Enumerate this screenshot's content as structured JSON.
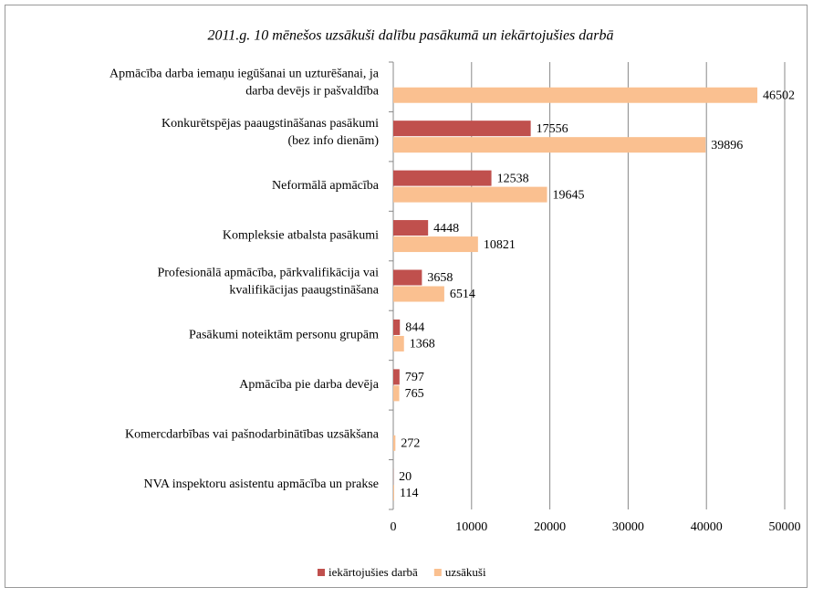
{
  "chart_data": {
    "type": "bar",
    "orientation": "horizontal",
    "title": "2011.g. 10 mēnešos uzsākuši  dalību pasākumā un iekārtojušies  darbā",
    "categories": [
      "Apmācība darba iemaņu iegūšanai un uzturēšanai, ja\ndarba devējs ir pašvaldība",
      "Konkurētspējas paaugstināšanas pasākumi\n(bez info dienām)",
      "Neformālā apmācība",
      "Kompleksie atbalsta pasākumi",
      "Profesionālā apmācība, pārkvalifikācija vai\nkvalifikācijas paaugstināšana",
      "Pasākumi noteiktām personu grupām",
      "Apmācība pie darba devēja",
      "Komercdarbības vai pašnodarbinātības uzsākšana",
      "NVA inspektoru asistentu apmācība un prakse"
    ],
    "series": [
      {
        "name": "iekārtojušies darbā",
        "color": "#c0504d",
        "values": [
          null,
          17556,
          12538,
          4448,
          3658,
          844,
          797,
          null,
          20
        ]
      },
      {
        "name": "uzsākuši",
        "color": "#fac090",
        "values": [
          46502,
          39896,
          19645,
          10821,
          6514,
          1368,
          765,
          272,
          114
        ]
      }
    ],
    "xlim": [
      0,
      50000
    ],
    "xticks": [
      0,
      10000,
      20000,
      30000,
      40000,
      50000
    ],
    "grid": true,
    "legend": "bottom"
  }
}
